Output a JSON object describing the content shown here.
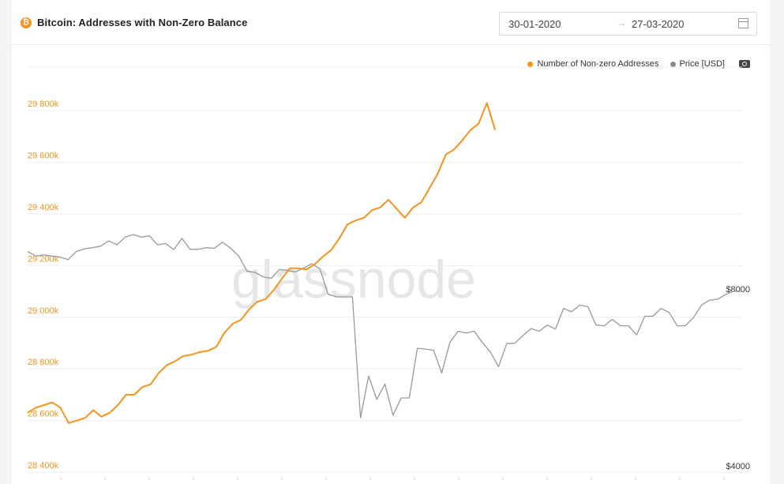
{
  "header": {
    "coin_icon": "bitcoin-icon",
    "title": "Bitcoin: Addresses with Non-Zero Balance",
    "date_start": "30-01-2020",
    "date_arrow": "→",
    "date_end": "27-03-2020",
    "calendar_icon": "calendar-icon"
  },
  "legend": {
    "items": [
      {
        "label": "Number of Non-zero Addresses",
        "color": "#f7931a"
      },
      {
        "label": "Price [USD]",
        "color": "#888888"
      }
    ],
    "camera_icon": "camera-icon"
  },
  "watermark": "glassnode",
  "chart_data": {
    "type": "line",
    "grid": true,
    "legend_position": "top-right",
    "left_axis": {
      "ticks": [
        28400,
        28600,
        28800,
        29000,
        29200,
        29400,
        29600,
        29800
      ],
      "tick_labels": [
        "28 400k",
        "28 600k",
        "28 800k",
        "29 000k",
        "29 200k",
        "29 400k",
        "29 600k",
        "29 800k"
      ],
      "range": [
        28400,
        29980
      ],
      "color": "#f7931a"
    },
    "right_axis": {
      "ticks": [
        4000,
        8000
      ],
      "tick_labels": [
        "$4000",
        "$8000"
      ],
      "range": [
        4000,
        10000
      ],
      "scale": "log"
    },
    "series": [
      {
        "name": "Number of Non-zero Addresses",
        "axis": "left",
        "color": "#f7931a",
        "values": [
          28630,
          28650,
          28660,
          28670,
          28650,
          28590,
          28600,
          28610,
          28640,
          28615,
          28630,
          28660,
          28700,
          28700,
          28730,
          28740,
          28785,
          28815,
          28830,
          28850,
          28855,
          28865,
          28870,
          28885,
          28940,
          28975,
          28990,
          29030,
          29060,
          29070,
          29105,
          29150,
          29190,
          29190,
          29185,
          29205,
          29235,
          29260,
          29305,
          29360,
          29375,
          29385,
          29415,
          29425,
          29455,
          29420,
          29385,
          29425,
          29445,
          29500,
          29555,
          29630,
          29650,
          29685,
          29725,
          29750,
          29830,
          29725
        ]
      },
      {
        "name": "Price [USD]",
        "axis": "right",
        "color": "#999999",
        "values": [
          9500,
          9330,
          9370,
          9330,
          9290,
          9200,
          9500,
          9600,
          9640,
          9700,
          9900,
          9750,
          10050,
          10150,
          10050,
          10100,
          9750,
          9800,
          9570,
          10000,
          9580,
          9580,
          9640,
          9620,
          9850,
          9620,
          9330,
          8800,
          8750,
          8600,
          8550,
          8850,
          8820,
          8770,
          8900,
          9050,
          8870,
          8040,
          7950,
          7950,
          7950,
          4950,
          5830,
          5320,
          5650,
          5000,
          5350,
          5350,
          6500,
          6480,
          6450,
          5900,
          6650,
          6950,
          6900,
          6950,
          6650,
          6400,
          6050,
          6620,
          6630,
          6830,
          7020,
          6950,
          7120,
          7010,
          7600,
          7500,
          7700,
          7650,
          7120,
          7100,
          7280,
          7100,
          7100,
          6850,
          7370,
          7370,
          7600,
          7480,
          7100,
          7100,
          7330,
          7700,
          7850,
          7880,
          8030,
          8130,
          8130
        ]
      }
    ]
  }
}
